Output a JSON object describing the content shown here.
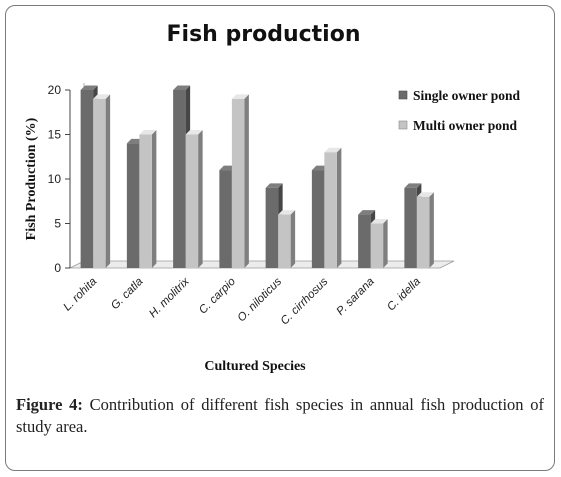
{
  "chart_data": {
    "type": "bar",
    "title": "Fish production",
    "xlabel": "Cultured Species",
    "ylabel": "Fish Production (%)",
    "ylim": [
      0,
      20
    ],
    "yticks": [
      "0",
      "5",
      "10",
      "15",
      "20"
    ],
    "grid": false,
    "legend_position": "right",
    "categories": [
      "L. rohita",
      "G. catla",
      "H. molitrix",
      "C. carpio",
      "O. niloticus",
      "C. cirrhosus",
      "P. sarana",
      "C. idella"
    ],
    "series": [
      {
        "name": "Single owner pond",
        "color": "#6b6b6b",
        "values": [
          20,
          14,
          20,
          11,
          9,
          11,
          6,
          9
        ]
      },
      {
        "name": "Multi owner pond",
        "color": "#c4c4c4",
        "values": [
          19,
          15,
          15,
          19,
          6,
          13,
          5,
          8
        ]
      }
    ]
  },
  "caption": {
    "label": "Figure 4:",
    "text": " Contribution of different fish species in annual fish production of study area."
  }
}
